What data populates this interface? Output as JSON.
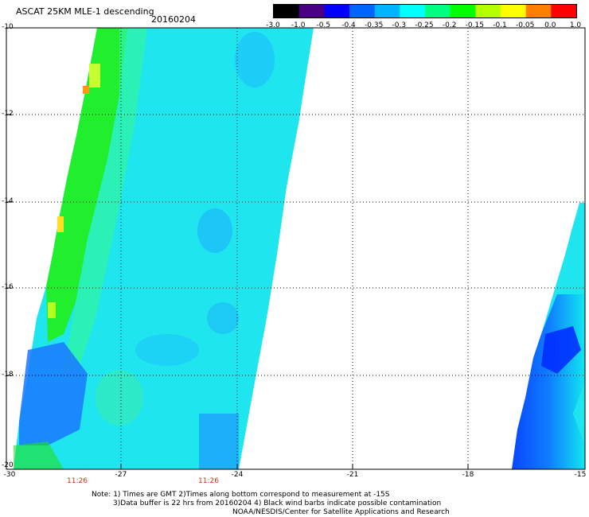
{
  "header": {
    "title": "ASCAT 25KM MLE-1 descending",
    "date": "20160204"
  },
  "colorbar": {
    "labels": [
      "-3.0",
      "-1.0",
      "-0.5",
      "-0.4",
      "-0.35",
      "-0.3",
      "-0.25",
      "-0.2",
      "-0.15",
      "-0.1",
      "-0.05",
      "0.0",
      "1.0"
    ],
    "colors": [
      "#000000",
      "#4b0082",
      "#0000ff",
      "#0064ff",
      "#00b4ff",
      "#00ffff",
      "#00ff80",
      "#00ff00",
      "#b4ff00",
      "#ffff00",
      "#ff8000",
      "#ff0000"
    ]
  },
  "axes": {
    "y_labels": [
      "-10",
      "-12",
      "-14",
      "-16",
      "-18",
      "-20"
    ],
    "x_labels": [
      "-30",
      "-27",
      "-24",
      "-21",
      "-18",
      "-15"
    ],
    "time_labels": [
      "11:26",
      "11:26"
    ]
  },
  "notes": {
    "line1": "Note: 1) Times are GMT 2)Times along bottom correspond to measurement at -15S",
    "line2": "3)Data buffer is 22 hrs from 20160204 4) Black wind barbs indicate possible contamination",
    "line3": "NOAA/NESDIS/Center for Satellite Applications and Research"
  }
}
